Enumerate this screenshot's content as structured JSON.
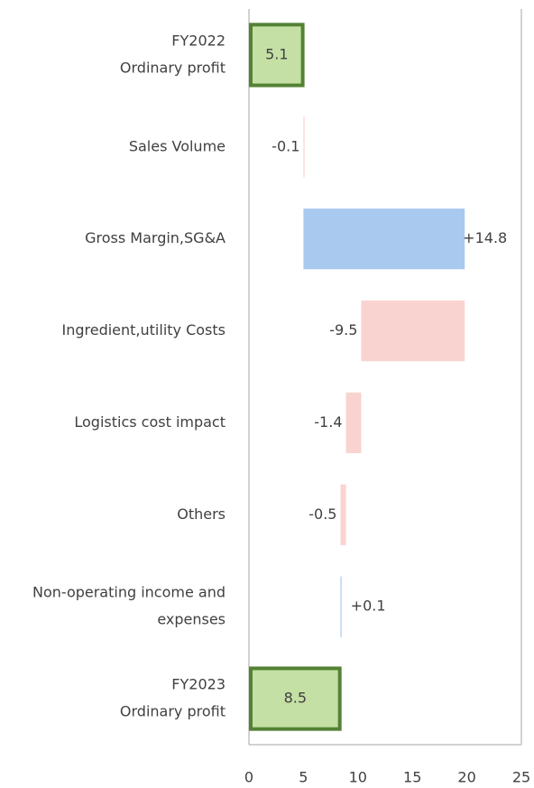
{
  "chart_data": {
    "type": "waterfall",
    "categories": [
      [
        "FY2022",
        "Ordinary profit"
      ],
      [
        "Sales Volume"
      ],
      [
        "Gross Margin,SG&A"
      ],
      [
        "Ingredient,utility Costs"
      ],
      [
        "Logistics cost impact"
      ],
      [
        "Others"
      ],
      [
        "Non-operating income and",
        "expenses"
      ],
      [
        "FY2023",
        "Ordinary profit"
      ]
    ],
    "values": [
      5.1,
      -0.1,
      14.8,
      -9.5,
      -1.4,
      -0.5,
      0.1,
      8.5
    ],
    "value_labels": [
      "5.1",
      "-0.1",
      "+14.8",
      "-9.5",
      "-1.4",
      "-0.5",
      "+0.1",
      "8.5"
    ],
    "total_color": "#c5e0a5",
    "total_edge": "#548235",
    "increase_color": "#a9c9ef",
    "decrease_color": "#f9d3d0",
    "label_color": "#404040",
    "negative_label_color": "#ff0000",
    "xlim": [
      0,
      25
    ],
    "xticks": [
      0,
      5,
      10,
      15,
      20,
      25
    ]
  }
}
